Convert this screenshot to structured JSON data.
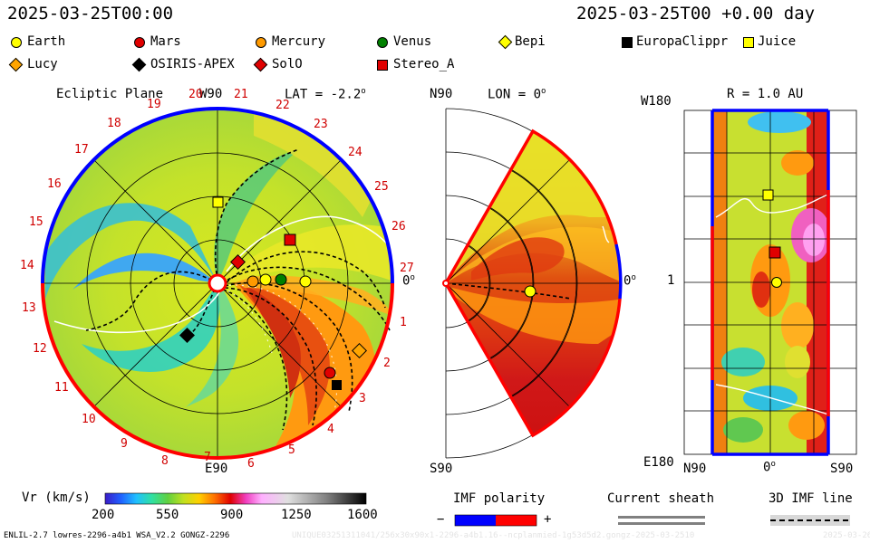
{
  "header": {
    "left_time": "2025-03-25T00:00",
    "right_time": "2025-03-25T00 +0.00 day"
  },
  "legend": [
    {
      "name": "Earth",
      "shape": "circle",
      "color": "#ffff00"
    },
    {
      "name": "Mars",
      "shape": "circle",
      "color": "#e00000"
    },
    {
      "name": "Mercury",
      "shape": "circle",
      "color": "#ff9a00"
    },
    {
      "name": "Venus",
      "shape": "circle",
      "color": "#008000"
    },
    {
      "name": "Bepi",
      "shape": "diamond",
      "color": "#ffff00"
    },
    {
      "name": "EuropaClippr",
      "shape": "square",
      "color": "#000000"
    },
    {
      "name": "Juice",
      "shape": "square",
      "color": "#ffff00"
    },
    {
      "name": "Lucy",
      "shape": "diamond",
      "color": "#ffa500"
    },
    {
      "name": "OSIRIS-APEX",
      "shape": "diamond",
      "color": "#000000"
    },
    {
      "name": "SolO",
      "shape": "diamond",
      "color": "#e00000"
    },
    {
      "name": "Stereo_A",
      "shape": "square",
      "color": "#e00000"
    }
  ],
  "panels": {
    "ecliptic": {
      "title": "Ecliptic Plane",
      "top_label": "W90",
      "bottom_label": "E90",
      "right_label": "0",
      "lat_label": "LAT = -2.2",
      "carrington_ticks": [
        "1",
        "2",
        "3",
        "4",
        "5",
        "6",
        "7",
        "8",
        "9",
        "10",
        "11",
        "12",
        "13",
        "14",
        "15",
        "16",
        "17",
        "18",
        "19",
        "20",
        "21",
        "22",
        "23",
        "24",
        "25",
        "26",
        "27"
      ]
    },
    "meridional": {
      "top_label": "N90",
      "bottom_label": "S90",
      "right_label": "0",
      "lon_label": "LON = 0"
    },
    "sphere": {
      "title": "R = 1.0 AU",
      "top_left": "W180",
      "mid_left": "1",
      "bottom_left": "E180",
      "bottom_labels": [
        "N90",
        "0",
        "S90"
      ]
    }
  },
  "colorbar": {
    "label": "Vr (km/s)",
    "ticks": [
      "200",
      "550",
      "900",
      "1250",
      "1600"
    ]
  },
  "imf": {
    "label": "IMF polarity",
    "minus": "−",
    "plus": "+",
    "sheath_label": "Current sheath",
    "line_label": "3D IMF line"
  },
  "footer": {
    "left": "ENLIL-2.7 lowres-2296-a4b1 WSA_V2.2 GONGZ-2296",
    "middle": "UNIQUE03251311041/256x30x90x1-2296-a4b1.16--ncplanmied-1g53d5d2.gongz-2025-03-2510",
    "right": "2025-03-26"
  },
  "colors": {
    "boundary_red": "#ff0000",
    "boundary_blue": "#0000ff",
    "grid": "#000000"
  }
}
